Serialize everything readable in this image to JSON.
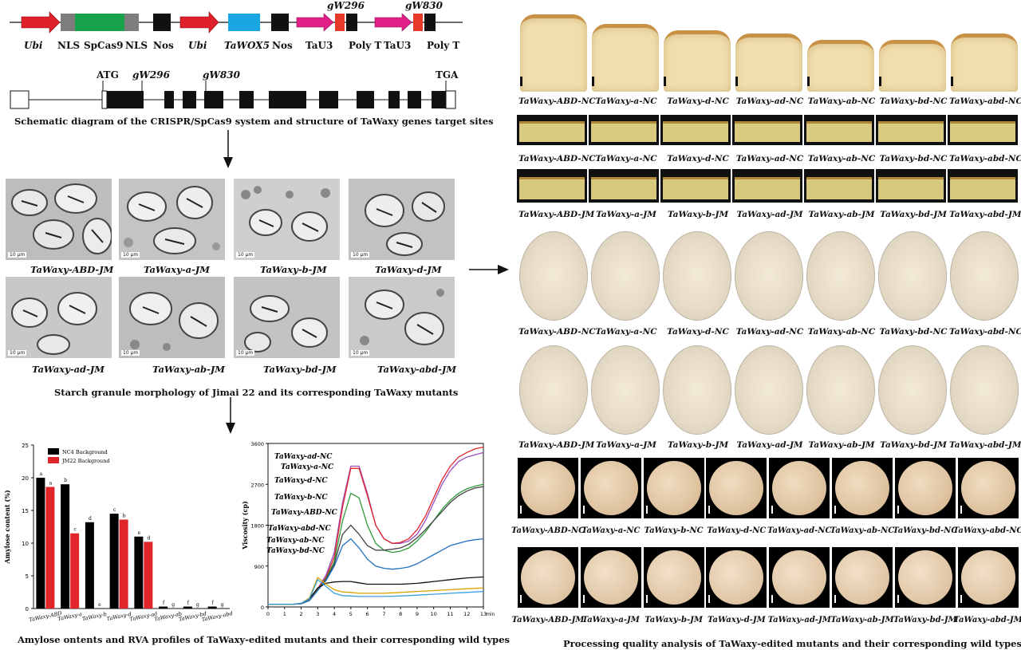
{
  "construct": {
    "labels": [
      "Ubi",
      "NLS",
      "SpCas9",
      "NLS",
      "Nos",
      "Ubi",
      "TaWOX5",
      "Nos",
      "TaU3",
      "Poly T",
      "TaU3",
      "Poly T"
    ],
    "targets": [
      "gW296",
      "gW830"
    ],
    "gene_labels": [
      "ATG",
      "gW296",
      "gW830",
      "TGA"
    ],
    "caption": "Schematic diagram of the CRISPR/SpCas9 system and structure of TaWaxy genes target sites"
  },
  "sem": {
    "scale": "10 μm",
    "row1": [
      "TaWaxy-ABD-JM",
      "TaWaxy-a-JM",
      "TaWaxy-b-JM",
      "TaWaxy-d-JM"
    ],
    "row2": [
      "TaWaxy-ad-JM",
      "TaWaxy-ab-JM",
      "TaWaxy-bd-JM",
      "TaWaxy-abd-JM"
    ],
    "caption": "Starch granule morphology of Jimai 22 and its corresponding TaWaxy mutants"
  },
  "bottom_caption": "Amylose ontents and RVA profiles  of TaWaxy-edited mutants and their corresponding wild types",
  "right_caption": "Processing quality analysis of TaWaxy-edited mutants and their corresponding wild types",
  "bread_nc": [
    "TaWaxy-ABD-NC",
    "TaWaxy-a-NC",
    "TaWaxy-d-NC",
    "TaWaxy-ad-NC",
    "TaWaxy-ab-NC",
    "TaWaxy-bd-NC",
    "TaWaxy-abd-NC"
  ],
  "cake_nc": [
    "TaWaxy-ABD-NC",
    "TaWaxy-a-NC",
    "TaWaxy-d-NC",
    "TaWaxy-ad-NC",
    "TaWaxy-ab-NC",
    "TaWaxy-bd-NC",
    "TaWaxy-abd-NC"
  ],
  "cake_jm": [
    "TaWaxy-ABD-JM",
    "TaWaxy-a-JM",
    "TaWaxy-b-JM",
    "TaWaxy-ad-JM",
    "TaWaxy-ab-JM",
    "TaWaxy-bd-JM",
    "TaWaxy-abd-JM"
  ],
  "noodle_nc": [
    "TaWaxy-ABD-NC",
    "TaWaxy-a-NC",
    "TaWaxy-d-NC",
    "TaWaxy-ad-NC",
    "TaWaxy-ab-NC",
    "TaWaxy-bd-NC",
    "TaWaxy-abd-NC"
  ],
  "noodle_jm": [
    "TaWaxy-ABD-JM",
    "TaWaxy-a-JM",
    "TaWaxy-b-JM",
    "TaWaxy-ad-JM",
    "TaWaxy-ab-JM",
    "TaWaxy-bd-JM",
    "TaWaxy-abd-JM"
  ],
  "cookie_nc": [
    "TaWaxy-ABD-NC",
    "TaWaxy-a-NC",
    "TaWaxy-b-NC",
    "TaWaxy-d-NC",
    "TaWaxy-ad-NC",
    "TaWaxy-ab-NC",
    "TaWaxy-bd-NC",
    "TaWaxy-abd-NC"
  ],
  "cookie_jm": [
    "TaWaxy-ABD-JM",
    "TaWaxy-a-JM",
    "TaWaxy-b-JM",
    "TaWaxy-d-JM",
    "TaWaxy-ad-JM",
    "TaWaxy-ab-JM",
    "TaWaxy-bd-JM",
    "TaWaxy-abd-JM"
  ],
  "chart_data": [
    {
      "type": "bar",
      "ylabel": "Amylose content (%)",
      "ylim": [
        0,
        25
      ],
      "yticks": [
        0,
        5,
        10,
        15,
        20,
        25
      ],
      "categories": [
        "TaWaxy-ABD",
        "TaWaxy-a",
        "TaWaxy-b",
        "TaWaxy-d",
        "TaWaxy-ad",
        "TaWaxy-ab",
        "TaWaxy-bd",
        "TaWaxy-abd"
      ],
      "series": [
        {
          "name": "NC4 Background",
          "color": "#000000",
          "values": [
            20.0,
            19.0,
            13.2,
            14.5,
            11.0,
            0.3,
            0.3,
            0.3
          ],
          "letters": [
            "a",
            "b",
            "d",
            "c",
            "e",
            "f",
            "f",
            "f"
          ]
        },
        {
          "name": "JM22 Background",
          "color": "#e0262b",
          "values": [
            18.6,
            11.5,
            0,
            13.6,
            10.2,
            0,
            0,
            0
          ],
          "letters": [
            "a",
            "c",
            "e",
            "b",
            "d",
            "g",
            "g",
            "g"
          ]
        }
      ],
      "legend": "top-left"
    },
    {
      "type": "line",
      "ylabel": "Viscosity (cp)",
      "xlabel": "min",
      "xlim": [
        0,
        13
      ],
      "ylim": [
        0,
        3600
      ],
      "xticks": [
        0,
        1,
        2,
        3,
        4,
        5,
        6,
        7,
        8,
        9,
        10,
        11,
        12,
        13
      ],
      "yticks": [
        0,
        900,
        1800,
        2700,
        3600
      ],
      "series": [
        {
          "name": "TaWaxy-ad-NC",
          "color": "#9a4fc0",
          "x": [
            0,
            0.5,
            1,
            1.5,
            2,
            2.5,
            3,
            3.5,
            4,
            4.5,
            5,
            5.5,
            6,
            6.5,
            7,
            7.5,
            8,
            8.5,
            9,
            9.5,
            10,
            10.5,
            11,
            11.5,
            12,
            12.5,
            13
          ],
          "y": [
            60,
            60,
            60,
            60,
            70,
            150,
            400,
            700,
            1200,
            2300,
            3100,
            3100,
            2500,
            1800,
            1500,
            1400,
            1400,
            1450,
            1600,
            1900,
            2300,
            2700,
            3000,
            3200,
            3300,
            3350,
            3400
          ]
        },
        {
          "name": "TaWaxy-a-NC",
          "color": "#e0262b",
          "x": [
            0,
            0.5,
            1,
            1.5,
            2,
            2.5,
            3,
            3.5,
            4,
            4.5,
            5,
            5.5,
            6,
            6.5,
            7,
            7.5,
            8,
            8.5,
            9,
            9.5,
            10,
            10.5,
            11,
            11.5,
            12,
            12.5,
            13
          ],
          "y": [
            60,
            60,
            60,
            60,
            70,
            150,
            400,
            650,
            1100,
            2200,
            3050,
            3050,
            2450,
            1800,
            1500,
            1400,
            1420,
            1500,
            1700,
            2000,
            2400,
            2800,
            3100,
            3300,
            3400,
            3480,
            3520
          ]
        },
        {
          "name": "TaWaxy-d-NC",
          "color": "#2e9c3c",
          "x": [
            0,
            0.5,
            1,
            1.5,
            2,
            2.5,
            3,
            3.5,
            4,
            4.5,
            5,
            5.5,
            6,
            6.5,
            7,
            7.5,
            8,
            8.5,
            9,
            9.5,
            10,
            10.5,
            11,
            11.5,
            12,
            12.5,
            13
          ],
          "y": [
            60,
            60,
            60,
            60,
            70,
            140,
            380,
            620,
            1000,
            1900,
            2500,
            2400,
            1800,
            1400,
            1250,
            1200,
            1230,
            1300,
            1450,
            1650,
            1900,
            2150,
            2350,
            2500,
            2600,
            2660,
            2700
          ]
        },
        {
          "name": "TaWaxy-b-NC",
          "color": "#444444",
          "x": [
            0,
            0.5,
            1,
            1.5,
            2,
            2.5,
            3,
            3.5,
            4,
            4.5,
            5,
            5.5,
            6,
            6.5,
            7,
            7.5,
            8,
            8.5,
            9,
            9.5,
            10,
            10.5,
            11,
            11.5,
            12,
            12.5,
            13
          ],
          "y": [
            60,
            60,
            60,
            60,
            70,
            140,
            370,
            600,
            950,
            1600,
            1800,
            1600,
            1350,
            1250,
            1250,
            1270,
            1300,
            1380,
            1520,
            1700,
            1900,
            2100,
            2300,
            2450,
            2550,
            2620,
            2650
          ]
        },
        {
          "name": "TaWaxy-ABD-NC",
          "color": "#1f6fc0",
          "x": [
            0,
            0.5,
            1,
            1.5,
            2,
            2.5,
            3,
            3.5,
            4,
            4.5,
            5,
            5.5,
            6,
            6.5,
            7,
            7.5,
            8,
            8.5,
            9,
            9.5,
            10,
            10.5,
            11,
            11.5,
            12,
            12.5,
            13
          ],
          "y": [
            60,
            60,
            60,
            60,
            70,
            140,
            360,
            580,
            900,
            1350,
            1500,
            1300,
            1050,
            900,
            850,
            830,
            850,
            880,
            950,
            1050,
            1150,
            1250,
            1350,
            1400,
            1450,
            1480,
            1500
          ]
        },
        {
          "name": "TaWaxy-abd-NC",
          "color": "#111111",
          "x": [
            0,
            0.5,
            1,
            1.5,
            2,
            2.5,
            3,
            3.5,
            4,
            4.5,
            5,
            5.5,
            6,
            6.5,
            7,
            7.5,
            8,
            8.5,
            9,
            9.5,
            10,
            10.5,
            11,
            11.5,
            12,
            12.5,
            13
          ],
          "y": [
            60,
            60,
            60,
            60,
            80,
            180,
            420,
            520,
            550,
            560,
            560,
            530,
            500,
            500,
            500,
            500,
            500,
            510,
            520,
            540,
            560,
            580,
            600,
            620,
            640,
            650,
            660
          ]
        },
        {
          "name": "TaWaxy-ab-NC",
          "color": "#d9a400",
          "x": [
            0,
            0.5,
            1,
            1.5,
            2,
            2.5,
            3,
            3.5,
            4,
            4.5,
            5,
            5.5,
            6,
            6.5,
            7,
            7.5,
            8,
            8.5,
            9,
            9.5,
            10,
            10.5,
            11,
            11.5,
            12,
            12.5,
            13
          ],
          "y": [
            60,
            60,
            60,
            60,
            80,
            200,
            650,
            500,
            380,
            330,
            320,
            300,
            300,
            300,
            300,
            310,
            320,
            330,
            340,
            350,
            360,
            370,
            380,
            390,
            400,
            410,
            420
          ]
        },
        {
          "name": "TaWaxy-bd-NC",
          "color": "#3a9edc",
          "x": [
            0,
            0.5,
            1,
            1.5,
            2,
            2.5,
            3,
            3.5,
            4,
            4.5,
            5,
            5.5,
            6,
            6.5,
            7,
            7.5,
            8,
            8.5,
            9,
            9.5,
            10,
            10.5,
            11,
            11.5,
            12,
            12.5,
            13
          ],
          "y": [
            60,
            60,
            60,
            60,
            80,
            180,
            600,
            450,
            300,
            250,
            240,
            230,
            230,
            230,
            230,
            235,
            240,
            250,
            260,
            270,
            280,
            290,
            300,
            310,
            320,
            330,
            340
          ]
        }
      ]
    }
  ]
}
